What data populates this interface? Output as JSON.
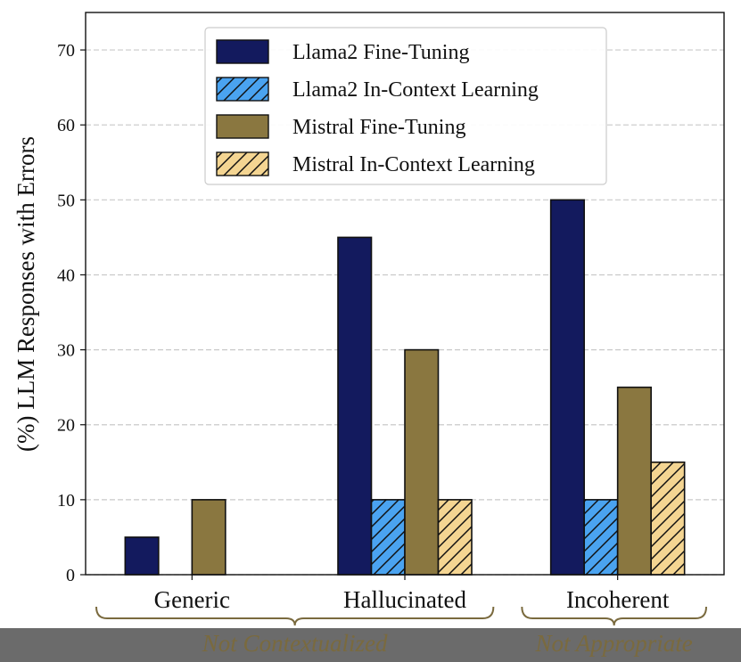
{
  "chart_data": {
    "type": "bar",
    "ylabel": "(%) LLM Responses with Errors",
    "xlabel": "",
    "ylim": [
      0,
      75
    ],
    "yticks": [
      0,
      10,
      20,
      30,
      40,
      50,
      60,
      70
    ],
    "grid": "y-axis dashed",
    "legend_position": "top-center",
    "categories": [
      "Generic",
      "Hallucinated",
      "Incoherent"
    ],
    "series": [
      {
        "name": "Llama2 Fine-Tuning",
        "values": [
          5,
          45,
          50
        ],
        "color": "#131a5e",
        "hatch": false
      },
      {
        "name": "Llama2 In-Context Learning",
        "values": [
          0,
          10,
          10
        ],
        "color": "#4aa3f0",
        "hatch": true
      },
      {
        "name": "Mistral Fine-Tuning",
        "values": [
          10,
          30,
          25
        ],
        "color": "#8a7740",
        "hatch": false
      },
      {
        "name": "Mistral In-Context Learning",
        "values": [
          0,
          10,
          15
        ],
        "color": "#f4d592",
        "hatch": true
      }
    ],
    "category_groups": [
      {
        "label": "Not Contextualized",
        "categories": [
          "Generic",
          "Hallucinated"
        ]
      },
      {
        "label": "Not Appropriate",
        "categories": [
          "Incoherent"
        ]
      }
    ]
  }
}
